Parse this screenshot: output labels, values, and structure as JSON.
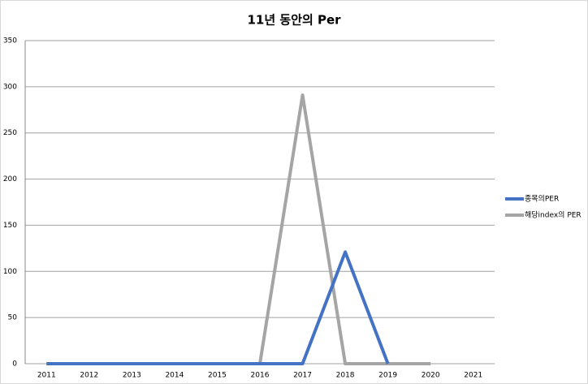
{
  "chart_data": {
    "type": "line",
    "title": "11년 동안의 Per",
    "categories": [
      "2011",
      "2012",
      "2013",
      "2014",
      "2015",
      "2016",
      "2017",
      "2018",
      "2019",
      "2020",
      "2021"
    ],
    "series": [
      {
        "name": "종목의PER",
        "color": "#4472c4",
        "values": [
          0,
          0,
          0,
          0,
          0,
          0,
          0,
          121,
          0,
          null,
          null
        ]
      },
      {
        "name": "해당index의 PER",
        "color": "#a5a5a5",
        "values": [
          0,
          0,
          0,
          0,
          0,
          0,
          291,
          0,
          0,
          0,
          null
        ]
      }
    ],
    "ylim": [
      0,
      350
    ],
    "yticks": [
      0,
      50,
      100,
      150,
      200,
      250,
      300,
      350
    ],
    "grid": true,
    "legend": "right"
  }
}
